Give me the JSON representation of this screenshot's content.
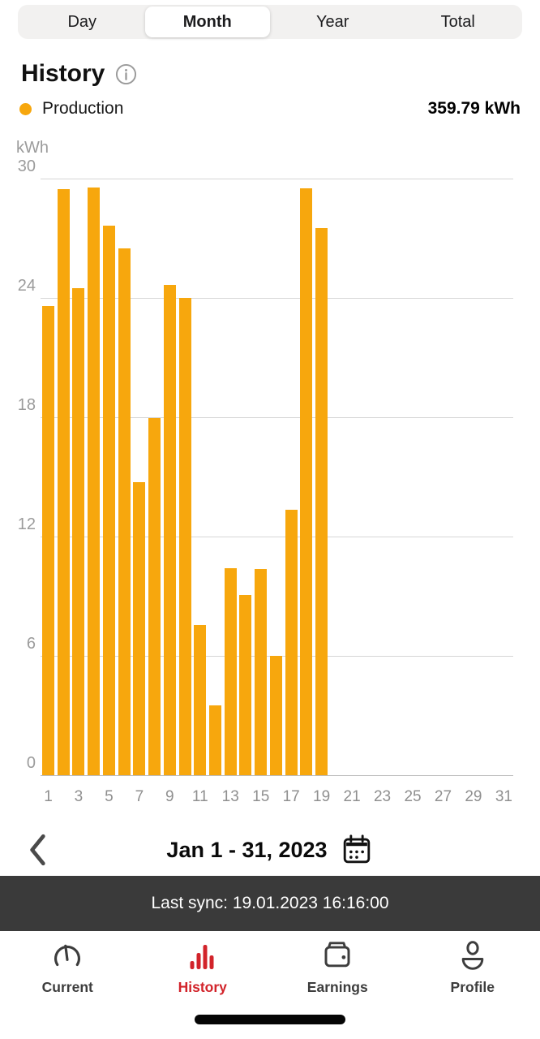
{
  "segmented": {
    "tabs": [
      "Day",
      "Month",
      "Year",
      "Total"
    ],
    "selected": "Month",
    "selected_index": 1
  },
  "header": {
    "title": "History"
  },
  "legend": {
    "label": "Production",
    "value": "359.79 kWh"
  },
  "chart_data": {
    "type": "bar",
    "title": "History",
    "series_name": "Production",
    "unit": "kWh",
    "ylabel": "kWh",
    "ylim": [
      0,
      30
    ],
    "yticks": [
      0,
      6,
      12,
      18,
      24,
      30
    ],
    "xticks": [
      1,
      3,
      5,
      7,
      9,
      11,
      13,
      15,
      17,
      19,
      21,
      23,
      25,
      27,
      29,
      31
    ],
    "categories": [
      1,
      2,
      3,
      4,
      5,
      6,
      7,
      8,
      9,
      10,
      11,
      12,
      13,
      14,
      15,
      16,
      17,
      18,
      19,
      20,
      21,
      22,
      23,
      24,
      25,
      26,
      27,
      28,
      29,
      30,
      31
    ],
    "values": [
      23.6,
      29.45,
      24.5,
      29.55,
      27.64,
      26.5,
      14.75,
      17.95,
      24.65,
      24.0,
      7.55,
      3.5,
      10.4,
      9.05,
      10.35,
      6.0,
      13.35,
      29.5,
      27.5,
      null,
      null,
      null,
      null,
      null,
      null,
      null,
      null,
      null,
      null,
      null,
      null
    ],
    "total": "359.79 kWh",
    "grid": true,
    "legend_position": "top-left",
    "bar_color": "#F7A70D"
  },
  "date_nav": {
    "label": "Jan 1 - 31, 2023"
  },
  "sync": {
    "text": "Last sync: 19.01.2023 16:16:00"
  },
  "tabbar": {
    "items": [
      {
        "label": "Current"
      },
      {
        "label": "History"
      },
      {
        "label": "Earnings"
      },
      {
        "label": "Profile"
      }
    ],
    "active_index": 1
  },
  "colors": {
    "bar": "#F7A70D",
    "active_tab": "#D2232A",
    "sync_bg": "#3A3A3A",
    "segment_bg": "#F2F1F0"
  }
}
